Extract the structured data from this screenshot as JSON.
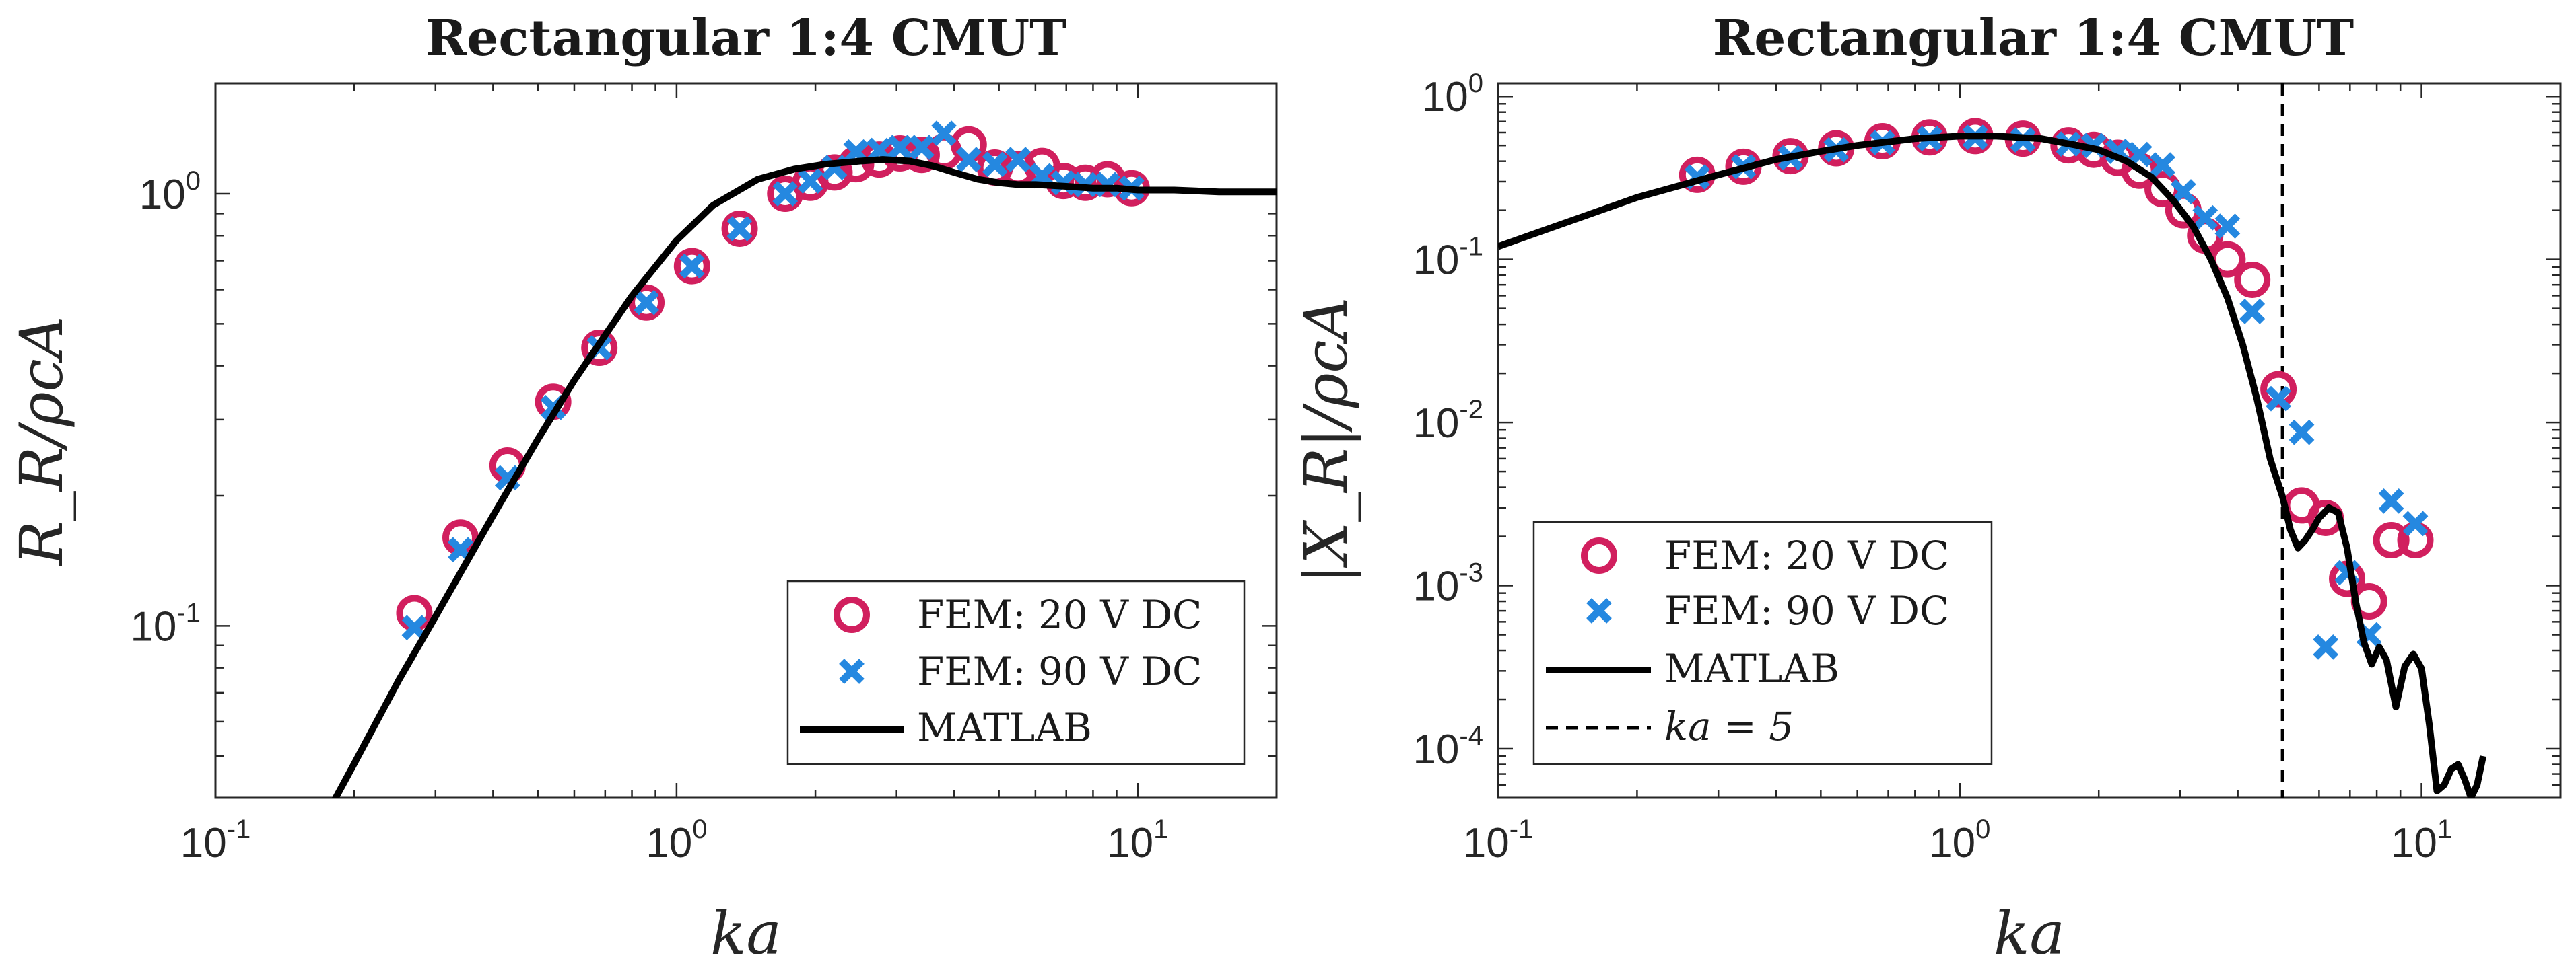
{
  "colors": {
    "fem20": "#d11f5e",
    "fem90": "#2588e0",
    "matlab": "#000000",
    "ka5": "#000000"
  },
  "chart_data": [
    {
      "type": "line",
      "title": "Rectangular 1:4 CMUT",
      "xlabel": "ka",
      "ylabel": "R_R/ρcA",
      "xscale": "log",
      "yscale": "log",
      "xlim": [
        0.1,
        20
      ],
      "ylim": [
        0.04,
        1.8
      ],
      "xticks": [
        {
          "base": "10",
          "exp": "-1",
          "value": 0.1
        },
        {
          "base": "10",
          "exp": "0",
          "value": 1
        },
        {
          "base": "10",
          "exp": "1",
          "value": 10
        }
      ],
      "yticks": [
        {
          "base": "10",
          "exp": "-1",
          "value": 0.1
        },
        {
          "base": "10",
          "exp": "0",
          "value": 1
        }
      ],
      "legend": {
        "position": "bottom-right",
        "entries": [
          {
            "label": "FEM: 20 V DC",
            "marker": "circle",
            "series": "fem20"
          },
          {
            "label": "FEM: 90 V DC",
            "marker": "x",
            "series": "fem90"
          },
          {
            "label": "MATLAB",
            "marker": "line",
            "series": "matlab"
          }
        ]
      },
      "series": [
        {
          "name": "FEM: 20 V DC",
          "key": "fem20",
          "marker": "circle",
          "x": [
            0.27,
            0.34,
            0.43,
            0.54,
            0.68,
            0.86,
            1.08,
            1.37,
            1.72,
            1.95,
            2.2,
            2.45,
            2.75,
            3.05,
            3.4,
            3.8,
            4.3,
            4.9,
            5.5,
            6.2,
            6.9,
            7.7,
            8.6,
            9.7
          ],
          "y": [
            0.107,
            0.16,
            0.235,
            0.33,
            0.44,
            0.56,
            0.68,
            0.83,
            1.0,
            1.06,
            1.12,
            1.17,
            1.2,
            1.24,
            1.23,
            1.25,
            1.3,
            1.15,
            1.14,
            1.16,
            1.07,
            1.06,
            1.08,
            1.03
          ]
        },
        {
          "name": "FEM: 90 V DC",
          "key": "fem90",
          "marker": "x",
          "x": [
            0.27,
            0.34,
            0.43,
            0.54,
            0.68,
            0.86,
            1.08,
            1.37,
            1.72,
            1.95,
            2.2,
            2.45,
            2.75,
            3.05,
            3.4,
            3.8,
            4.3,
            4.9,
            5.5,
            6.2,
            6.9,
            7.7,
            8.6,
            9.7
          ],
          "y": [
            0.099,
            0.15,
            0.22,
            0.32,
            0.44,
            0.56,
            0.68,
            0.83,
            1.0,
            1.07,
            1.15,
            1.25,
            1.26,
            1.28,
            1.28,
            1.38,
            1.2,
            1.17,
            1.2,
            1.1,
            1.06,
            1.05,
            1.05,
            1.03
          ]
        },
        {
          "name": "MATLAB",
          "key": "matlab",
          "marker": "line",
          "x": [
            0.18,
            0.2,
            0.25,
            0.3,
            0.4,
            0.5,
            0.6,
            0.8,
            1.0,
            1.2,
            1.5,
            1.8,
            2.1,
            2.5,
            2.8,
            3.2,
            3.6,
            4.0,
            4.5,
            5.0,
            5.5,
            6,
            7,
            8,
            9,
            10,
            12,
            15,
            20
          ],
          "y": [
            0.039,
            0.048,
            0.075,
            0.105,
            0.18,
            0.27,
            0.37,
            0.58,
            0.78,
            0.94,
            1.08,
            1.14,
            1.17,
            1.19,
            1.2,
            1.19,
            1.16,
            1.12,
            1.08,
            1.06,
            1.05,
            1.05,
            1.04,
            1.03,
            1.03,
            1.02,
            1.02,
            1.01,
            1.01
          ]
        }
      ]
    },
    {
      "type": "line",
      "title": "Rectangular 1:4 CMUT",
      "xlabel": "ka",
      "ylabel": "|X_R|/ρcA",
      "xscale": "log",
      "yscale": "log",
      "xlim": [
        0.1,
        20
      ],
      "ylim": [
        5e-05,
        1.2
      ],
      "xticks": [
        {
          "base": "10",
          "exp": "-1",
          "value": 0.1
        },
        {
          "base": "10",
          "exp": "0",
          "value": 1
        },
        {
          "base": "10",
          "exp": "1",
          "value": 10
        }
      ],
      "yticks": [
        {
          "base": "10",
          "exp": "-4",
          "value": 0.0001
        },
        {
          "base": "10",
          "exp": "-3",
          "value": 0.001
        },
        {
          "base": "10",
          "exp": "-2",
          "value": 0.01
        },
        {
          "base": "10",
          "exp": "-1",
          "value": 0.1
        },
        {
          "base": "10",
          "exp": "0",
          "value": 1
        }
      ],
      "vline": {
        "x": 5,
        "label": "ka = 5"
      },
      "legend": {
        "position": "bottom-left",
        "entries": [
          {
            "label": "FEM: 20 V DC",
            "marker": "circle",
            "series": "fem20"
          },
          {
            "label": "FEM: 90 V DC",
            "marker": "x",
            "series": "fem90"
          },
          {
            "label": "MATLAB",
            "marker": "line",
            "series": "matlab"
          },
          {
            "label": "ka = 5",
            "marker": "dashed",
            "series": "ka5"
          }
        ]
      },
      "series": [
        {
          "name": "FEM: 20 V DC",
          "key": "fem20",
          "marker": "circle",
          "x": [
            0.27,
            0.34,
            0.43,
            0.54,
            0.68,
            0.86,
            1.08,
            1.37,
            1.72,
            1.95,
            2.2,
            2.45,
            2.75,
            3.05,
            3.4,
            3.8,
            4.3,
            4.9,
            5.5,
            6.2,
            6.9,
            7.7,
            8.6,
            9.7
          ],
          "y": [
            0.33,
            0.37,
            0.43,
            0.48,
            0.53,
            0.56,
            0.57,
            0.55,
            0.5,
            0.47,
            0.42,
            0.35,
            0.27,
            0.2,
            0.14,
            0.1,
            0.075,
            0.016,
            0.0031,
            0.0026,
            0.0011,
            0.0008,
            0.0019,
            0.0019
          ]
        },
        {
          "name": "FEM: 90 V DC",
          "key": "fem90",
          "marker": "x",
          "x": [
            0.27,
            0.34,
            0.43,
            0.54,
            0.68,
            0.86,
            1.08,
            1.37,
            1.72,
            1.95,
            2.2,
            2.45,
            2.75,
            3.05,
            3.4,
            3.8,
            4.3,
            4.9,
            5.5,
            6.2,
            6.9,
            7.7,
            8.6,
            9.7
          ],
          "y": [
            0.32,
            0.37,
            0.42,
            0.47,
            0.52,
            0.55,
            0.56,
            0.54,
            0.51,
            0.5,
            0.46,
            0.44,
            0.38,
            0.26,
            0.18,
            0.16,
            0.048,
            0.014,
            0.0087,
            0.00042,
            0.0012,
            0.0005,
            0.0033,
            0.0024
          ]
        },
        {
          "name": "MATLAB",
          "key": "matlab",
          "marker": "line",
          "x": [
            0.1,
            0.15,
            0.2,
            0.3,
            0.4,
            0.5,
            0.6,
            0.8,
            1.0,
            1.2,
            1.5,
            1.8,
            2.0,
            2.3,
            2.6,
            2.9,
            3.2,
            3.5,
            3.8,
            4.1,
            4.4,
            4.7,
            5.0,
            5.2,
            5.4,
            5.6,
            5.8,
            6.0,
            6.3,
            6.6,
            6.9,
            7.2,
            7.5,
            7.8,
            8.1,
            8.4,
            8.8,
            9.2,
            9.6,
            10.0,
            10.4,
            10.8,
            11.2,
            11.6,
            12.0,
            12.4,
            12.8,
            13.2,
            13.6
          ],
          "y": [
            0.12,
            0.18,
            0.24,
            0.33,
            0.41,
            0.46,
            0.5,
            0.55,
            0.57,
            0.57,
            0.55,
            0.5,
            0.47,
            0.4,
            0.32,
            0.23,
            0.16,
            0.1,
            0.058,
            0.03,
            0.014,
            0.006,
            0.0035,
            0.0022,
            0.0017,
            0.0019,
            0.0022,
            0.0026,
            0.003,
            0.0028,
            0.0017,
            0.0008,
            0.00045,
            0.00033,
            0.00042,
            0.00035,
            0.00018,
            0.00032,
            0.00038,
            0.00031,
            0.00014,
            5.5e-05,
            6e-05,
            7.5e-05,
            8e-05,
            6.5e-05,
            5e-05,
            6e-05,
            9e-05
          ]
        }
      ]
    }
  ]
}
